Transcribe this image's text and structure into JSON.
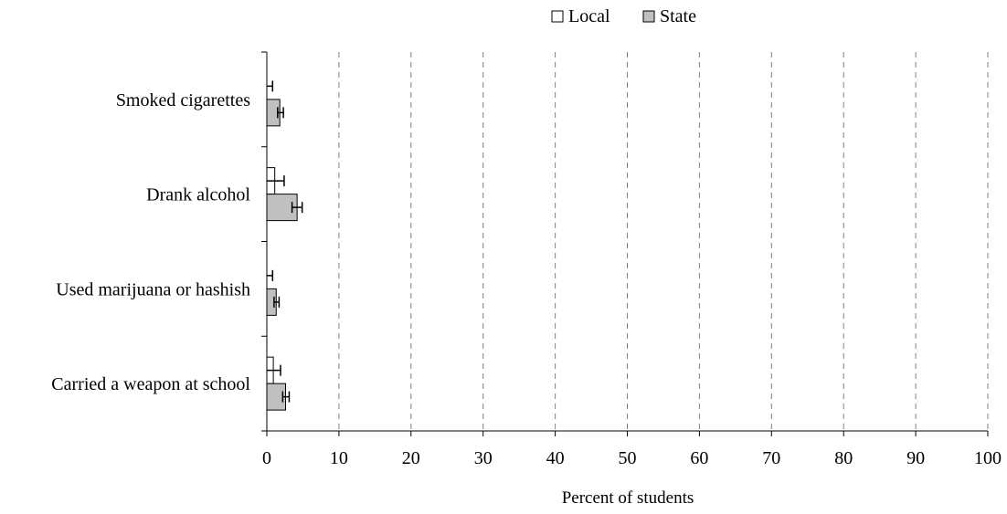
{
  "chart_data": {
    "type": "bar",
    "orientation": "horizontal",
    "categories": [
      "Smoked cigarettes",
      "Drank alcohol",
      "Used marijuana or hashish",
      "Carried a weapon at school"
    ],
    "series": [
      {
        "name": "Local",
        "color": "#ffffff",
        "values": [
          0.0,
          1.1,
          0.0,
          0.9
        ],
        "error_low": [
          0.0,
          0.0,
          0.0,
          0.0
        ],
        "error_high": [
          0.8,
          2.4,
          0.8,
          1.9
        ]
      },
      {
        "name": "State",
        "color": "#c0c0c0",
        "values": [
          1.8,
          4.2,
          1.3,
          2.6
        ],
        "error_low": [
          1.5,
          3.5,
          1.0,
          2.2
        ],
        "error_high": [
          2.3,
          4.9,
          1.7,
          3.1
        ]
      }
    ],
    "xlabel": "Percent of students",
    "xlim": [
      0,
      100
    ],
    "xticks": [
      "0",
      "10",
      "20",
      "30",
      "40",
      "50",
      "60",
      "70",
      "80",
      "90",
      "100"
    ],
    "grid": "vertical-dashed",
    "legend_position": "top-right"
  }
}
